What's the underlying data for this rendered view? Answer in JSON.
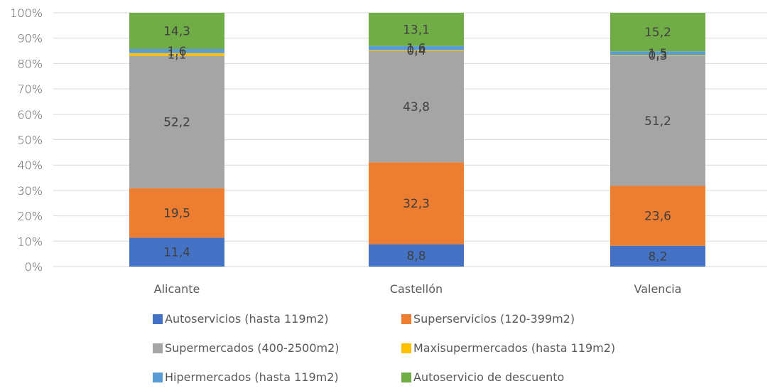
{
  "chart_data": {
    "type": "bar",
    "stacked": "percent",
    "categories": [
      "Alicante",
      "Castellón",
      "Valencia"
    ],
    "series": [
      {
        "name": "Autoservicios (hasta 119m2)",
        "color": "#4472C4",
        "values": [
          11.4,
          8.8,
          8.2
        ],
        "labels": [
          "11,4",
          "8,8",
          "8,2"
        ]
      },
      {
        "name": "Superservicios (120-399m2)",
        "color": "#ED7D31",
        "values": [
          19.5,
          32.3,
          23.6
        ],
        "labels": [
          "19,5",
          "32,3",
          "23,6"
        ]
      },
      {
        "name": "Supermercados (400-2500m2)",
        "color": "#A5A5A5",
        "values": [
          52.2,
          43.8,
          51.2
        ],
        "labels": [
          "52,2",
          "43,8",
          "51,2"
        ]
      },
      {
        "name": "Maxisupermercados (hasta 119m2)",
        "color": "#FFC000",
        "values": [
          1.1,
          0.4,
          0.3
        ],
        "labels": [
          "1,1",
          "0,4",
          "0,3"
        ]
      },
      {
        "name": "Hipermercados (hasta 119m2)",
        "color": "#5B9BD5",
        "values": [
          1.6,
          1.6,
          1.5
        ],
        "labels": [
          "1,6",
          "1,6",
          "1,5"
        ]
      },
      {
        "name": "Autoservicio de descuento",
        "color": "#70AD47",
        "values": [
          14.3,
          13.1,
          15.2
        ],
        "labels": [
          "14,3",
          "13,1",
          "15,2"
        ]
      }
    ],
    "y_ticks": [
      "0%",
      "10%",
      "20%",
      "30%",
      "40%",
      "50%",
      "60%",
      "70%",
      "80%",
      "90%",
      "100%"
    ],
    "ylim": [
      0,
      100
    ],
    "grid": true,
    "legend_position": "bottom",
    "title": "",
    "xlabel": "",
    "ylabel": ""
  }
}
